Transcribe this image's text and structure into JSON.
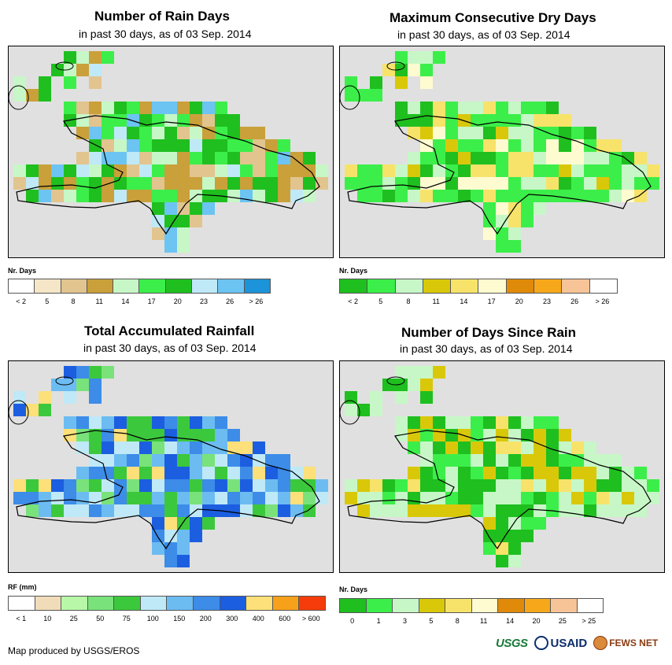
{
  "panels": [
    {
      "id": "rain-days",
      "title": "Number of Rain Days",
      "subtitle": "in past 30 days, as of 03 Sep. 2014",
      "legend_title": "Nr. Days",
      "legend_colors": [
        "#ffffff",
        "#f5e6c8",
        "#e2c48f",
        "#c9a03a",
        "#c7f7c7",
        "#3cee4a",
        "#1fbf1f",
        "#bfe9f7",
        "#6cc4f2",
        "#1d93d9"
      ],
      "legend_labels": [
        "< 2",
        "5",
        "8",
        "11",
        "14",
        "17",
        "20",
        "23",
        "26",
        "> 26"
      ]
    },
    {
      "id": "max-dry-days",
      "title": "Maximum Consecutive Dry Days",
      "subtitle": "in past 30 days, as of 03 Sep. 2014",
      "legend_title": "Nr. Days",
      "legend_colors": [
        "#1fbf1f",
        "#3cee4a",
        "#c7f7c7",
        "#d9c80a",
        "#f7e36a",
        "#fffbd0",
        "#e08a0a",
        "#f7a81a",
        "#f7c498",
        "#ffffff"
      ],
      "legend_labels": [
        "< 2",
        "5",
        "8",
        "11",
        "14",
        "17",
        "20",
        "23",
        "26",
        "> 26"
      ]
    },
    {
      "id": "total-rainfall",
      "title": "Total Accumulated Rainfall",
      "subtitle": "in past 30 days, as of 03 Sep. 2014",
      "legend_title": "RF (mm)",
      "legend_colors": [
        "#ffffff",
        "#f0dcb8",
        "#b8f7a8",
        "#7ae27a",
        "#3cc83c",
        "#bfe9f7",
        "#6cbcf2",
        "#3c8ce8",
        "#1c5ee0",
        "#fde07a",
        "#f7a11a",
        "#f53c0a"
      ],
      "legend_labels": [
        "< 1",
        "10",
        "25",
        "50",
        "75",
        "100",
        "150",
        "200",
        "300",
        "400",
        "600",
        "> 600"
      ]
    },
    {
      "id": "days-since-rain",
      "title": "Number of Days Since Rain",
      "subtitle": "in past 30 days, as of 03 Sep. 2014",
      "legend_title": "Nr. Days",
      "legend_colors": [
        "#1fbf1f",
        "#3cee4a",
        "#c7f7c7",
        "#d9c80a",
        "#f7e36a",
        "#fffbd0",
        "#e08a0a",
        "#f7a81a",
        "#f7c498",
        "#ffffff"
      ],
      "legend_labels": [
        "0",
        "1",
        "3",
        "5",
        "8",
        "11",
        "14",
        "20",
        "25",
        "> 25"
      ]
    }
  ],
  "credit": "Map produced by USGS/EROS",
  "logos": {
    "usgs": "USGS",
    "usaid": "USAID",
    "fews": "FEWS NET"
  }
}
